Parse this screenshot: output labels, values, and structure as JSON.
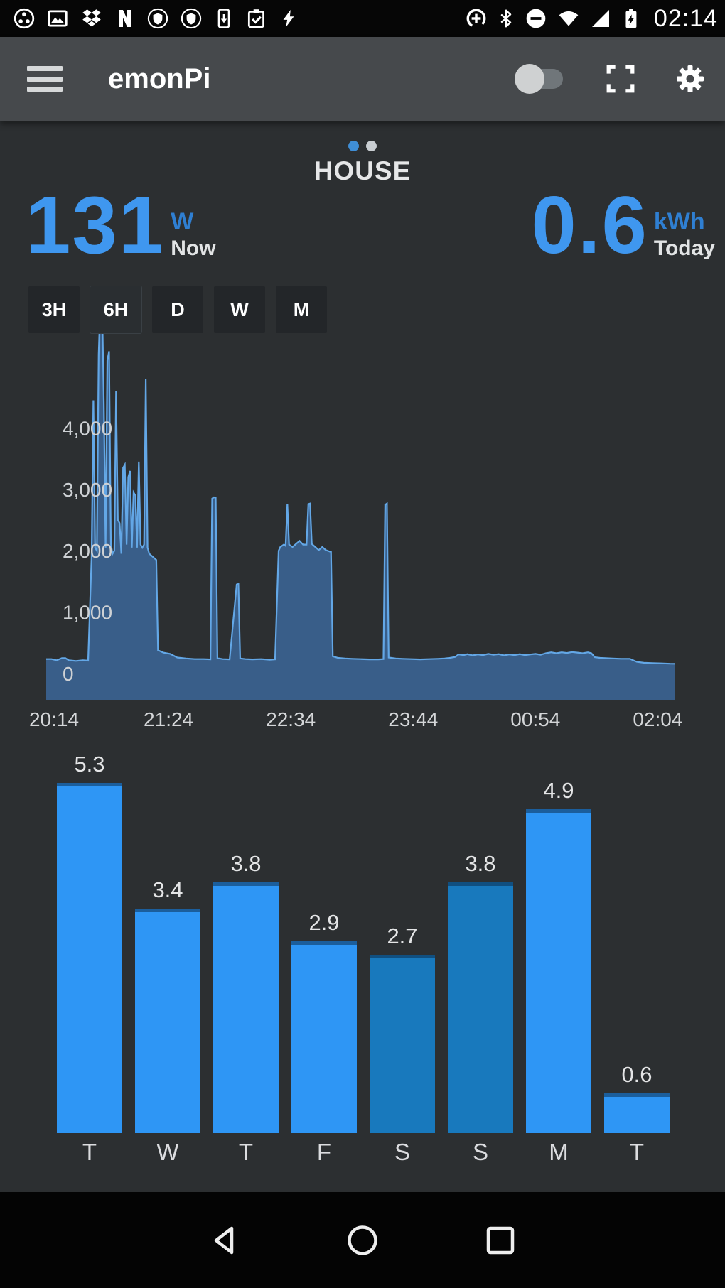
{
  "status_bar": {
    "time": "02:14",
    "left_icons": [
      "circle-dots-icon",
      "gallery-icon",
      "dropbox-icon",
      "netflix-icon",
      "shield-badge-icon",
      "shield-badge-icon-2",
      "phone-download-icon",
      "clipboard-check-icon",
      "flash-icon"
    ],
    "right_icons": [
      "data-saver-icon",
      "bluetooth-icon",
      "do-not-disturb-icon",
      "wifi-icon",
      "cell-signal-icon",
      "battery-charging-icon"
    ]
  },
  "toolbar": {
    "title": "emonPi",
    "icons": [
      "menu-icon",
      "display-toggle",
      "fullscreen-icon",
      "settings-gear-icon"
    ],
    "toggle_state": "off"
  },
  "page": {
    "title": "HOUSE",
    "dots": {
      "count": 2,
      "active_index": 0,
      "active_color": "#3f8ed6",
      "inactive_color": "#c9ced2"
    },
    "range_buttons": [
      {
        "label": "3H",
        "active": false
      },
      {
        "label": "6H",
        "active": true
      },
      {
        "label": "D",
        "active": false
      },
      {
        "label": "W",
        "active": false
      },
      {
        "label": "M",
        "active": false
      }
    ]
  },
  "readings": {
    "now": {
      "value": "131",
      "unit": "W",
      "label": "Now"
    },
    "today": {
      "value": "0.6",
      "unit": "kWh",
      "label": "Today"
    },
    "accent_color": "#3f97ef"
  },
  "chart_data": [
    {
      "type": "area",
      "title": "House power, last 6 hours (W)",
      "x_tick_labels": [
        "20:14",
        "21:24",
        "22:34",
        "23:44",
        "00:54",
        "02:04"
      ],
      "x_tick_minutes": [
        0,
        70,
        140,
        210,
        280,
        350
      ],
      "x_range_minutes": [
        0,
        360
      ],
      "y_ticks": [
        0,
        1000,
        2000,
        3000,
        4000
      ],
      "y_tick_labels": [
        "0",
        "1,000",
        "2,000",
        "3,000",
        "4,000"
      ],
      "ylim": [
        -420,
        6400
      ],
      "grid": false,
      "legend": "none",
      "colors": {
        "line": "#63a7e6",
        "fill": "rgba(62,112,172,0.72)"
      },
      "series": [
        {
          "name": "power_w",
          "points": [
            [
              0,
              235
            ],
            [
              3,
              235
            ],
            [
              6,
              215
            ],
            [
              9,
              250
            ],
            [
              11,
              250
            ],
            [
              13,
              215
            ],
            [
              17,
              205
            ],
            [
              21,
              215
            ],
            [
              24,
              210
            ],
            [
              26,
              1900
            ],
            [
              27,
              4450
            ],
            [
              28,
              2050
            ],
            [
              29,
              2000
            ],
            [
              30,
              5200
            ],
            [
              31,
              6150
            ],
            [
              32,
              6150
            ],
            [
              33,
              4400
            ],
            [
              34,
              2050
            ],
            [
              35,
              5100
            ],
            [
              36,
              5250
            ],
            [
              37,
              2100
            ],
            [
              38,
              1950
            ],
            [
              39,
              2000
            ],
            [
              40,
              4600
            ],
            [
              41,
              2500
            ],
            [
              42,
              2450
            ],
            [
              43,
              1950
            ],
            [
              44,
              3350
            ],
            [
              45,
              3400
            ],
            [
              46,
              2100
            ],
            [
              47,
              3200
            ],
            [
              48,
              3300
            ],
            [
              49,
              2050
            ],
            [
              50,
              2950
            ],
            [
              51,
              2900
            ],
            [
              52,
              2050
            ],
            [
              53,
              3450
            ],
            [
              54,
              2100
            ],
            [
              55,
              2050
            ],
            [
              56,
              2100
            ],
            [
              57,
              4800
            ],
            [
              58,
              2050
            ],
            [
              59,
              1950
            ],
            [
              61,
              1900
            ],
            [
              63,
              1850
            ],
            [
              64,
              380
            ],
            [
              67,
              340
            ],
            [
              71,
              320
            ],
            [
              75,
              260
            ],
            [
              80,
              245
            ],
            [
              85,
              235
            ],
            [
              90,
              235
            ],
            [
              94,
              230
            ],
            [
              95,
              2850
            ],
            [
              96,
              2870
            ],
            [
              97,
              2860
            ],
            [
              98,
              250
            ],
            [
              101,
              235
            ],
            [
              105,
              230
            ],
            [
              109,
              1450
            ],
            [
              110,
              1460
            ],
            [
              111,
              245
            ],
            [
              114,
              235
            ],
            [
              118,
              230
            ],
            [
              123,
              235
            ],
            [
              128,
              225
            ],
            [
              131,
              230
            ],
            [
              133,
              2000
            ],
            [
              134,
              2060
            ],
            [
              136,
              2100
            ],
            [
              137,
              2080
            ],
            [
              138,
              2760
            ],
            [
              139,
              2100
            ],
            [
              141,
              2060
            ],
            [
              143,
              2110
            ],
            [
              145,
              2160
            ],
            [
              147,
              2100
            ],
            [
              149,
              2100
            ],
            [
              150,
              2760
            ],
            [
              151,
              2770
            ],
            [
              152,
              2110
            ],
            [
              154,
              2060
            ],
            [
              156,
              2010
            ],
            [
              158,
              2060
            ],
            [
              160,
              2010
            ],
            [
              162,
              1990
            ],
            [
              163,
              1980
            ],
            [
              164,
              280
            ],
            [
              167,
              255
            ],
            [
              171,
              245
            ],
            [
              175,
              240
            ],
            [
              180,
              235
            ],
            [
              185,
              230
            ],
            [
              190,
              230
            ],
            [
              193,
              235
            ],
            [
              194,
              2750
            ],
            [
              195,
              2770
            ],
            [
              196,
              260
            ],
            [
              200,
              245
            ],
            [
              204,
              240
            ],
            [
              209,
              235
            ],
            [
              214,
              230
            ],
            [
              219,
              235
            ],
            [
              224,
              240
            ],
            [
              228,
              245
            ],
            [
              231,
              255
            ],
            [
              234,
              270
            ],
            [
              236,
              310
            ],
            [
              239,
              300
            ],
            [
              241,
              315
            ],
            [
              244,
              295
            ],
            [
              247,
              310
            ],
            [
              250,
              300
            ],
            [
              253,
              320
            ],
            [
              256,
              305
            ],
            [
              259,
              315
            ],
            [
              262,
              295
            ],
            [
              265,
              310
            ],
            [
              268,
              300
            ],
            [
              271,
              315
            ],
            [
              274,
              300
            ],
            [
              277,
              310
            ],
            [
              280,
              320
            ],
            [
              283,
              305
            ],
            [
              286,
              330
            ],
            [
              289,
              345
            ],
            [
              292,
              330
            ],
            [
              295,
              345
            ],
            [
              298,
              335
            ],
            [
              301,
              350
            ],
            [
              304,
              340
            ],
            [
              307,
              330
            ],
            [
              310,
              345
            ],
            [
              312,
              330
            ],
            [
              314,
              265
            ],
            [
              317,
              255
            ],
            [
              320,
              250
            ],
            [
              324,
              245
            ],
            [
              329,
              240
            ],
            [
              334,
              240
            ],
            [
              338,
              190
            ],
            [
              342,
              175
            ],
            [
              347,
              170
            ],
            [
              352,
              165
            ],
            [
              357,
              160
            ],
            [
              360,
              158
            ]
          ]
        }
      ]
    },
    {
      "type": "bar",
      "title": "Daily energy (kWh)",
      "categories": [
        "T",
        "W",
        "T",
        "F",
        "S",
        "S",
        "M",
        "T"
      ],
      "values": [
        5.3,
        3.4,
        3.8,
        2.9,
        2.7,
        3.8,
        4.9,
        0.6
      ],
      "value_labels": [
        "5.3",
        "3.4",
        "3.8",
        "2.9",
        "2.7",
        "3.8",
        "4.9",
        "0.6"
      ],
      "unit": "kWh",
      "ylim": [
        0,
        5.5
      ],
      "grid": false,
      "bar_colors": [
        "#2e96f5",
        "#2e96f5",
        "#2e96f5",
        "#2e96f5",
        "#1879bd",
        "#1879bd",
        "#2e96f5",
        "#2e96f5"
      ]
    }
  ],
  "nav_bar": {
    "buttons": [
      "back",
      "home",
      "recents"
    ]
  }
}
